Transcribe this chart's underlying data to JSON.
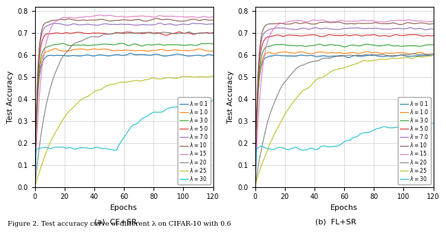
{
  "title_a": "(a)  CE+SR",
  "title_b": "(b)  FL+SR",
  "xlabel": "Epochs",
  "ylabel": "Test Accuracy",
  "xlim": [
    0,
    120
  ],
  "ylim": [
    0.0,
    0.82
  ],
  "yticks": [
    0.0,
    0.1,
    0.2,
    0.3,
    0.4,
    0.5,
    0.6,
    0.7,
    0.8
  ],
  "xticks": [
    0,
    20,
    40,
    60,
    80,
    100,
    120
  ],
  "caption": "Figure 2. Test accuracy curve of different λ on CIFAR-10 with 0.6",
  "lambdas": [
    0.1,
    1.0,
    3.0,
    5.0,
    7.0,
    10,
    15,
    20,
    25,
    30
  ],
  "colors": [
    "#1f77b4",
    "#ff7f0e",
    "#2ca02c",
    "#d62728",
    "#9467bd",
    "#8c564b",
    "#e377c2",
    "#7f7f7f",
    "#bcbd22",
    "#17becf"
  ],
  "labels": [
    "$\\lambda = 0.1$",
    "$\\lambda = 1.0$",
    "$\\lambda = 3.0$",
    "$\\lambda = 5.0$",
    "$\\lambda = 7.0$",
    "$\\lambda = 10$",
    "$\\lambda = 15$",
    "$\\lambda = 20$",
    "$\\lambda = 25$",
    "$\\lambda = 30$"
  ],
  "curves_a": {
    "final": [
      0.6,
      0.623,
      0.648,
      0.7,
      0.74,
      0.76,
      0.775,
      0.7,
      0.5,
      0.39
    ],
    "rise_speed": [
      0.6,
      0.6,
      0.6,
      0.6,
      0.6,
      0.6,
      0.25,
      0.1,
      0.05,
      0.0
    ],
    "init": [
      0.0,
      0.0,
      0.0,
      0.0,
      0.0,
      0.0,
      0.0,
      0.0,
      0.0,
      0.0
    ],
    "plateau_start": [
      0.16,
      0.16,
      0.16,
      0.16,
      0.16,
      0.16,
      0.22,
      0.1,
      0.19,
      0.175
    ],
    "plateau_end_epoch": [
      0,
      0,
      0,
      0,
      0,
      0,
      0,
      0,
      0,
      55
    ]
  },
  "curves_b": {
    "final": [
      0.597,
      0.61,
      0.645,
      0.69,
      0.72,
      0.745,
      0.755,
      0.6,
      0.595,
      0.29
    ],
    "rise_speed": [
      0.6,
      0.6,
      0.6,
      0.6,
      0.6,
      0.6,
      0.25,
      0.08,
      0.04,
      0.0
    ],
    "init": [
      0.0,
      0.0,
      0.0,
      0.0,
      0.0,
      0.0,
      0.0,
      0.0,
      0.0,
      0.0
    ],
    "plateau_start": [
      0.16,
      0.16,
      0.16,
      0.16,
      0.16,
      0.16,
      0.22,
      0.1,
      0.15,
      0.175
    ],
    "plateau_end_epoch": [
      0,
      0,
      0,
      0,
      0,
      0,
      0,
      0,
      0,
      55
    ]
  }
}
